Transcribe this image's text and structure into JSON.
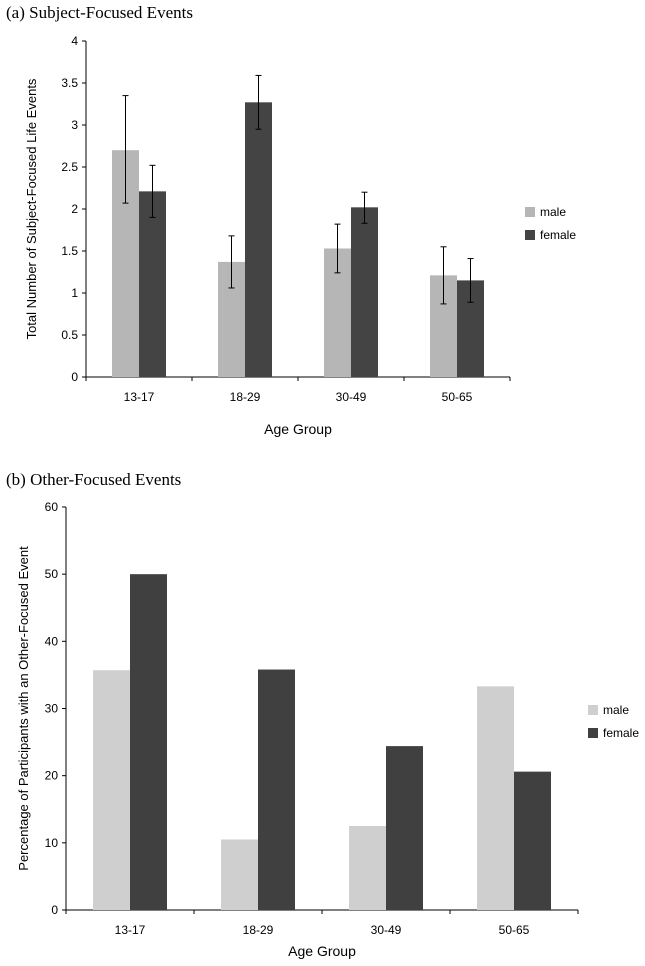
{
  "chart_data": [
    {
      "type": "bar",
      "title": "(a) Subject-Focused Events",
      "xlabel": "Age Group",
      "ylabel": "Total Number of Subject-Focused Life Events",
      "categories": [
        "13-17",
        "18-29",
        "30-49",
        "50-65"
      ],
      "ylim": [
        0,
        4
      ],
      "yticks": [
        0,
        0.5,
        1,
        1.5,
        2,
        2.5,
        3,
        3.5,
        4
      ],
      "ytick_labels": [
        "0",
        "0.5",
        "1",
        "1.5",
        "2",
        "2.5",
        "3",
        "3.5",
        "4"
      ],
      "series": [
        {
          "name": "male",
          "color": "#b6b6b6",
          "values": [
            2.7,
            1.37,
            1.53,
            1.21
          ],
          "error_low": [
            2.07,
            1.06,
            1.24,
            0.87
          ],
          "error_high": [
            3.35,
            1.68,
            1.82,
            1.55
          ]
        },
        {
          "name": "female",
          "color": "#444444",
          "values": [
            2.21,
            3.27,
            2.02,
            1.15
          ],
          "error_low": [
            1.9,
            2.95,
            1.83,
            0.89
          ],
          "error_high": [
            2.52,
            3.59,
            2.2,
            1.41
          ]
        }
      ],
      "legend": "right",
      "grid": false
    },
    {
      "type": "bar",
      "title": "(b) Other-Focused Events",
      "xlabel": "Age Group",
      "ylabel": "Percentage of Participants with an Other-Focused Event",
      "categories": [
        "13-17",
        "18-29",
        "30-49",
        "50-65"
      ],
      "ylim": [
        0,
        60
      ],
      "yticks": [
        0,
        10,
        20,
        30,
        40,
        50,
        60
      ],
      "ytick_labels": [
        "0",
        "10",
        "20",
        "30",
        "40",
        "50",
        "60"
      ],
      "series": [
        {
          "name": "male",
          "color": "#cfcfcf",
          "values": [
            35.7,
            10.5,
            12.5,
            33.3
          ]
        },
        {
          "name": "female",
          "color": "#404040",
          "values": [
            50,
            35.8,
            24.4,
            20.6
          ]
        }
      ],
      "legend": "right",
      "grid": false
    }
  ]
}
